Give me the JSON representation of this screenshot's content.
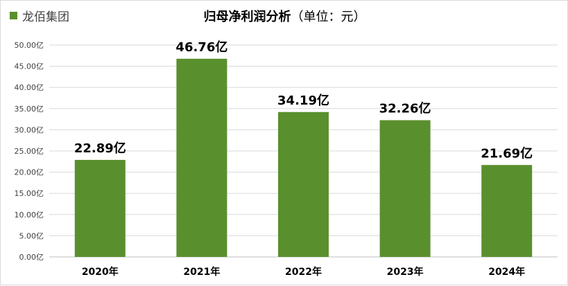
{
  "legend": {
    "label": "龙佰集团",
    "color": "#5a8f2e"
  },
  "title": {
    "main": "归母净利润分析",
    "unit": "（单位：元）"
  },
  "chart_data": {
    "type": "bar",
    "title": "归母净利润分析（单位：元）",
    "categories": [
      "2020年",
      "2021年",
      "2022年",
      "2023年",
      "2024年"
    ],
    "series": [
      {
        "name": "龙佰集团",
        "color": "#5a8f2e",
        "values": [
          22.89,
          46.76,
          34.19,
          32.26,
          21.69
        ]
      }
    ],
    "data_labels": [
      "22.89亿",
      "46.76亿",
      "34.19亿",
      "32.26亿",
      "21.69亿"
    ],
    "y_ticks": [
      "0.00亿",
      "5.00亿",
      "10.00亿",
      "15.00亿",
      "20.00亿",
      "25.00亿",
      "30.00亿",
      "35.00亿",
      "40.00亿",
      "45.00亿",
      "50.00亿"
    ],
    "ylim": [
      0,
      50
    ],
    "y_step": 5,
    "grid": true,
    "legend_position": "top-left"
  }
}
